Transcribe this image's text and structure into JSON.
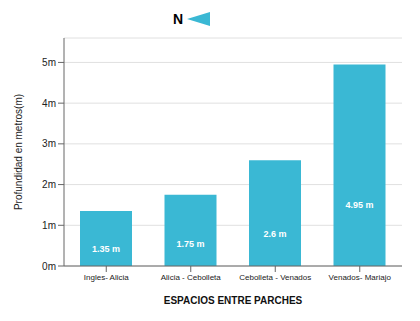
{
  "chart_data": {
    "type": "bar",
    "categories": [
      "Ingles- Alicia",
      "Alicia - Cebolleta",
      "Cebolleta - Venados",
      "Venados- Mariajo"
    ],
    "values": [
      1.35,
      1.75,
      2.6,
      4.95
    ],
    "value_labels": [
      "1.35 m",
      "1.75 m",
      "2.6 m",
      "4.95 m"
    ],
    "data_labels": true,
    "color": "#3ab8d4",
    "xlabel": "ESPACIOS ENTRE PARCHES",
    "ylabel": "Profundidad en metros(m)",
    "ylim": [
      0,
      5.6
    ],
    "yticks": [
      {
        "value": 0,
        "label": "0m"
      },
      {
        "value": 1,
        "label": "1m"
      },
      {
        "value": 2,
        "label": "2m"
      },
      {
        "value": 3,
        "label": "3m"
      },
      {
        "value": 4,
        "label": "4m"
      },
      {
        "value": 5,
        "label": "5m"
      }
    ],
    "grid": true,
    "annotations": [
      "N"
    ]
  }
}
